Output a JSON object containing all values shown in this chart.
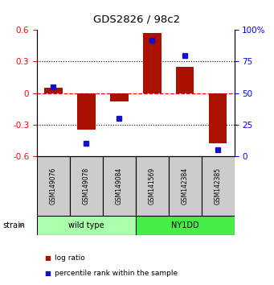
{
  "title": "GDS2826 / 98c2",
  "samples": [
    "GSM149076",
    "GSM149078",
    "GSM149084",
    "GSM141569",
    "GSM142384",
    "GSM142385"
  ],
  "log_ratios": [
    0.05,
    -0.35,
    -0.08,
    0.57,
    0.25,
    -0.48
  ],
  "percentile_ranks": [
    55,
    10,
    30,
    92,
    80,
    5
  ],
  "groups": [
    {
      "label": "wild type",
      "indices": [
        0,
        1,
        2
      ],
      "color": "#aaffaa"
    },
    {
      "label": "NY1DD",
      "indices": [
        3,
        4,
        5
      ],
      "color": "#44ee44"
    }
  ],
  "ylim_left": [
    -0.6,
    0.6
  ],
  "ylim_right": [
    0,
    100
  ],
  "yticks_left": [
    -0.6,
    -0.3,
    0.0,
    0.3,
    0.6
  ],
  "yticks_right": [
    0,
    25,
    50,
    75,
    100
  ],
  "bar_color": "#aa1100",
  "point_color": "#1111cc",
  "bar_width": 0.55,
  "hlines_dotted": [
    -0.3,
    0.3
  ],
  "hline_dashed_red": 0.0,
  "legend_labels": [
    "log ratio",
    "percentile rank within the sample"
  ],
  "strain_label": "strain",
  "sample_box_color": "#cccccc",
  "background_color": "#ffffff"
}
